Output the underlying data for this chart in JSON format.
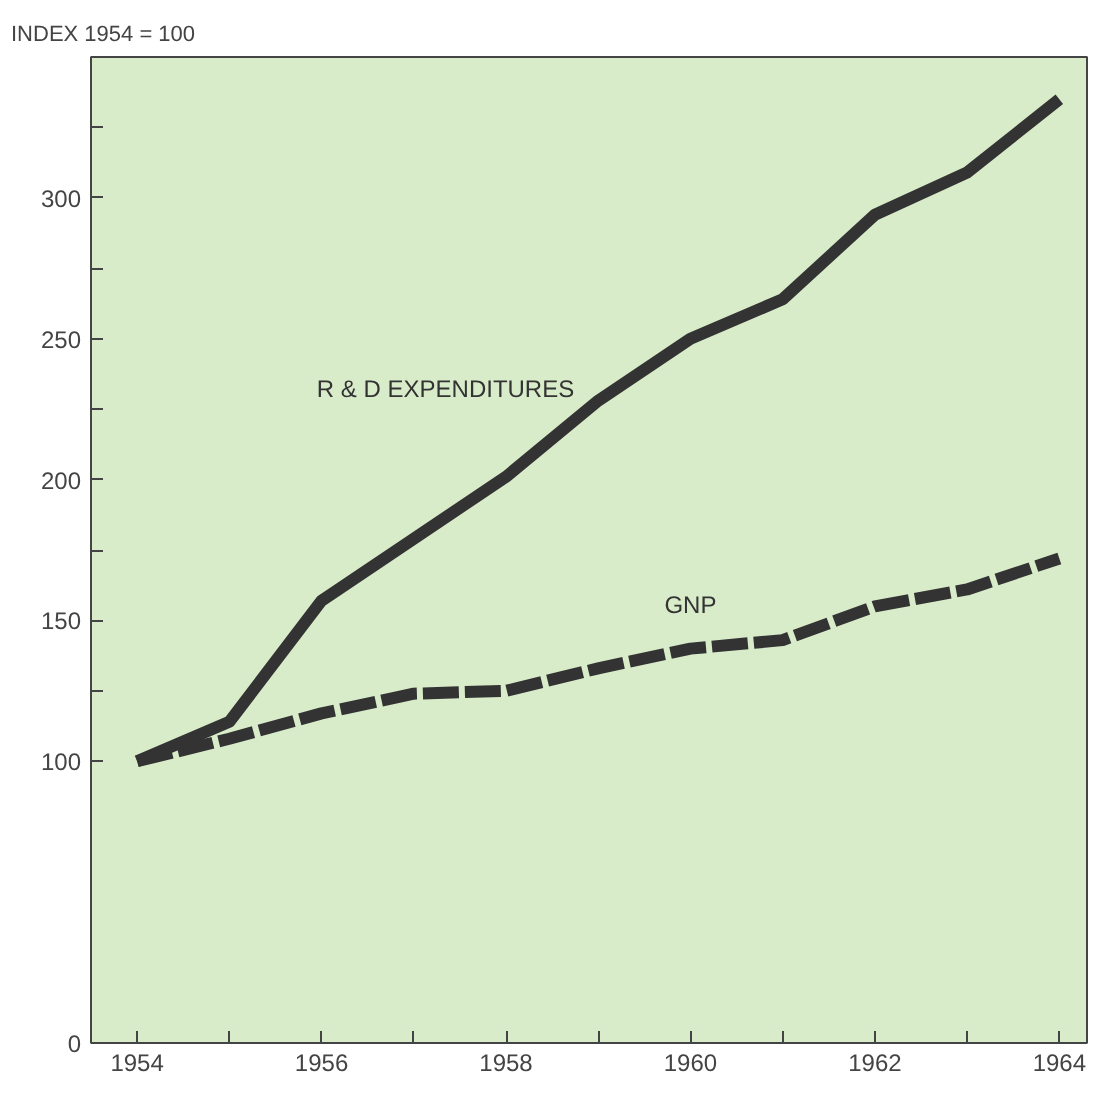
{
  "chart_data": {
    "type": "line",
    "title": "INDEX 1954 = 100",
    "x": [
      1954,
      1955,
      1956,
      1957,
      1958,
      1959,
      1960,
      1961,
      1962,
      1963,
      1964
    ],
    "series": [
      {
        "name": "R & D EXPENDITURES",
        "color": "#333333",
        "line_style": "solid",
        "values": [
          100,
          114,
          157,
          179,
          201,
          228,
          250,
          264,
          294,
          309,
          335
        ]
      },
      {
        "name": "GNP",
        "color": "#333333",
        "line_style": "dashed",
        "values": [
          100,
          108,
          117,
          124,
          125,
          133,
          140,
          143,
          155,
          161,
          172
        ]
      }
    ],
    "xlim": [
      1953.5,
      1964.3
    ],
    "xticks": [
      1954,
      {
        "value": 1955,
        "label": null
      },
      1956,
      {
        "value": 1957,
        "label": null
      },
      1958,
      {
        "value": 1959,
        "label": null
      },
      1960,
      {
        "value": 1961,
        "label": null
      },
      1962,
      {
        "value": 1963,
        "label": null
      },
      1964
    ],
    "ylim": [
      0,
      350
    ],
    "yticks": [
      0,
      100,
      {
        "value": 125,
        "label": null
      },
      150,
      {
        "value": 175,
        "label": null
      },
      200,
      {
        "value": 225,
        "label": null
      },
      250,
      {
        "value": 275,
        "label": null
      },
      300,
      {
        "value": 325,
        "label": null
      }
    ],
    "grid": false,
    "marker": "none"
  }
}
